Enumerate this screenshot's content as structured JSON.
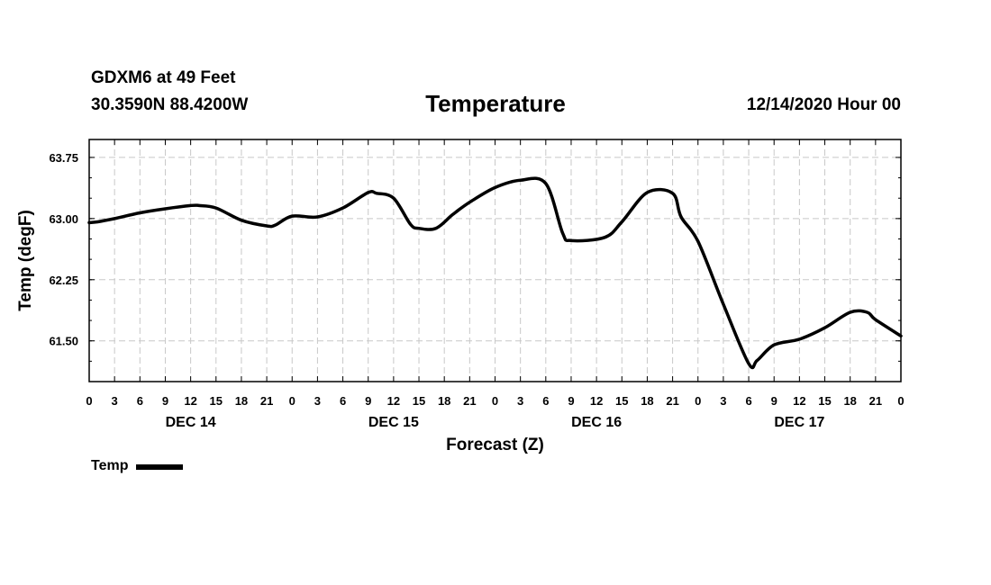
{
  "header": {
    "station": "GDXM6 at 49 Feet",
    "coords": "30.3590N 88.4200W",
    "title": "Temperature",
    "datetime": "12/14/2020 Hour 00"
  },
  "legend": {
    "label": "Temp"
  },
  "chart_data": {
    "type": "line",
    "title": "Temperature",
    "xlabel": "Forecast (Z)",
    "ylabel": "Temp (degF)",
    "xlim": [
      0,
      96
    ],
    "ylim": [
      61.0,
      63.97
    ],
    "yticks": [
      61.5,
      62.25,
      63.0,
      63.75
    ],
    "ytick_labels": [
      "61.50",
      "62.25",
      "63.00",
      "63.75"
    ],
    "xticks": [
      0,
      3,
      6,
      9,
      12,
      15,
      18,
      21,
      24,
      27,
      30,
      33,
      36,
      39,
      42,
      45,
      48,
      51,
      54,
      57,
      60,
      63,
      66,
      69,
      72,
      75,
      78,
      81,
      84,
      87,
      90,
      93,
      96
    ],
    "xtick_labels": [
      "0",
      "3",
      "6",
      "9",
      "12",
      "15",
      "18",
      "21",
      "0",
      "3",
      "6",
      "9",
      "12",
      "15",
      "18",
      "21",
      "0",
      "3",
      "6",
      "9",
      "12",
      "15",
      "18",
      "21",
      "0",
      "3",
      "6",
      "9",
      "12",
      "15",
      "18",
      "21",
      "0"
    ],
    "day_labels": [
      {
        "label": "DEC 14",
        "x": 12
      },
      {
        "label": "DEC 15",
        "x": 36
      },
      {
        "label": "DEC 16",
        "x": 60
      },
      {
        "label": "DEC 17",
        "x": 84
      }
    ],
    "grid": true,
    "legend_position": "bottom-left",
    "series": [
      {
        "name": "Temp",
        "color": "#000000",
        "x": [
          0,
          1,
          3,
          6,
          9,
          12,
          13,
          15,
          18,
          21,
          22,
          24,
          27,
          30,
          33,
          34,
          36,
          38,
          39,
          41,
          43,
          45,
          48,
          51,
          54,
          56,
          57,
          61,
          63,
          66,
          69,
          70,
          72,
          75,
          78,
          79,
          81,
          84,
          87,
          90,
          92,
          93,
          96
        ],
        "values": [
          62.95,
          62.96,
          63.0,
          63.07,
          63.12,
          63.16,
          63.16,
          63.13,
          62.98,
          62.91,
          62.92,
          63.03,
          63.02,
          63.13,
          63.32,
          63.31,
          63.25,
          62.93,
          62.88,
          62.88,
          63.05,
          63.2,
          63.38,
          63.47,
          63.43,
          62.82,
          62.73,
          62.77,
          62.96,
          63.32,
          63.31,
          63.02,
          62.72,
          61.95,
          61.22,
          61.26,
          61.45,
          61.52,
          61.66,
          61.85,
          61.85,
          61.76,
          61.56
        ]
      }
    ]
  }
}
